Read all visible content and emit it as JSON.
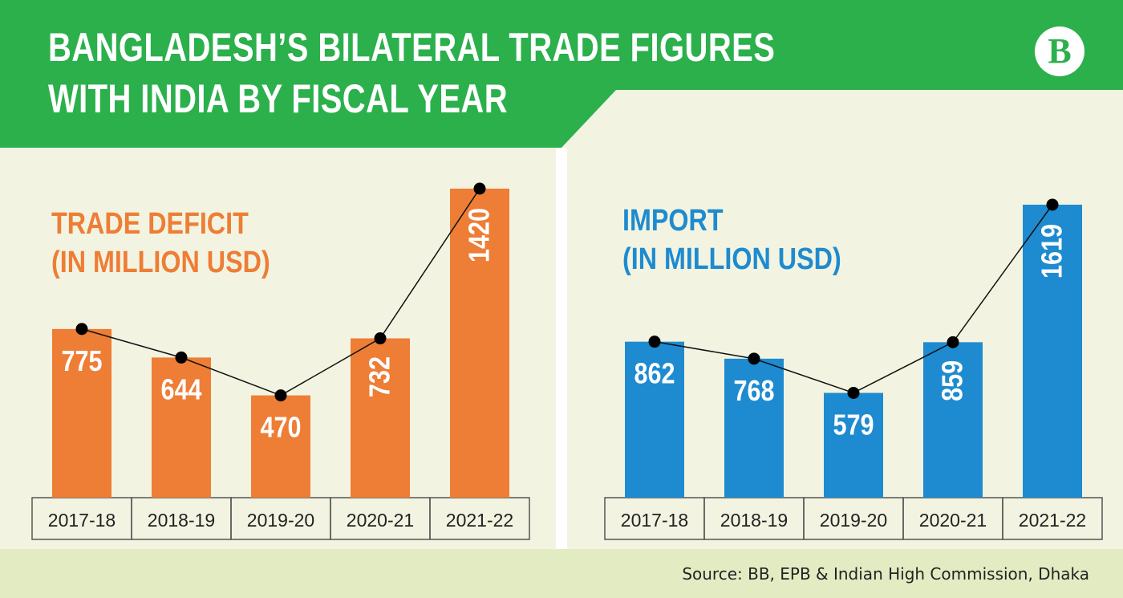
{
  "title": {
    "line1": "BANGLADESH’S BILATERAL TRADE FIGURES",
    "line2": "WITH INDIA BY FISCAL YEAR"
  },
  "logo_letter": "B",
  "source": "Source: BB, EPB & Indian High Commission, Dhaka",
  "colors": {
    "header_green": "#2bb04c",
    "background": "#f2f4e1",
    "footer": "#e3ebc3",
    "deficit_orange": "#ee7d36",
    "import_blue": "#1e8bd0"
  },
  "chart_data": [
    {
      "type": "bar",
      "title_line1": "TRADE DEFICIT",
      "title_line2": "(IN MILLION USD)",
      "categories": [
        "2017-18",
        "2018-19",
        "2019-20",
        "2020-21",
        "2021-22"
      ],
      "values": [
        775,
        644,
        470,
        732,
        1420
      ],
      "value_labels": [
        "775",
        "644",
        "470",
        "732",
        "1420"
      ],
      "label_rotated": [
        false,
        false,
        false,
        true,
        true
      ],
      "color": "#ee7d36",
      "overlay_line": true,
      "grid": false
    },
    {
      "type": "bar",
      "title_line1": "IMPORT",
      "title_line2": "(IN MILLION USD)",
      "categories": [
        "2017-18",
        "2018-19",
        "2019-20",
        "2020-21",
        "2021-22"
      ],
      "values": [
        862,
        768,
        579,
        859,
        1619
      ],
      "value_labels": [
        "862",
        "768",
        "579",
        "859",
        "1619"
      ],
      "label_rotated": [
        false,
        false,
        false,
        true,
        true
      ],
      "color": "#1e8bd0",
      "overlay_line": true,
      "grid": false
    }
  ]
}
